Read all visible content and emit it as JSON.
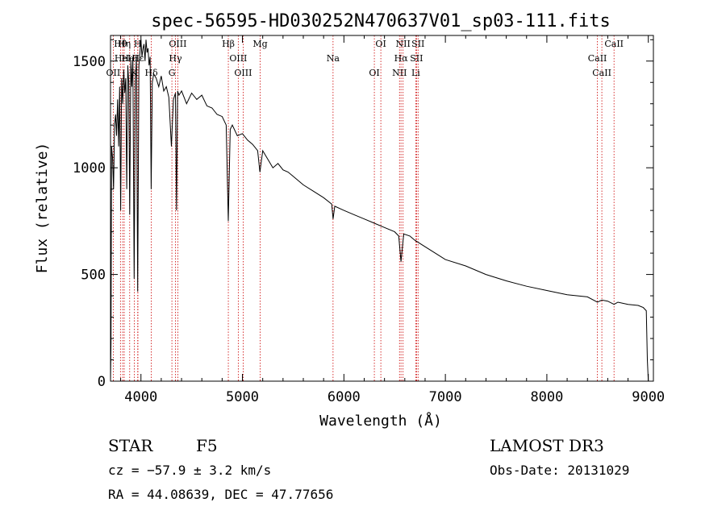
{
  "chart_data": {
    "type": "line",
    "title": "spec-56595-HD030252N470637V01_sp03-111.fits",
    "xlabel": "Wavelength (Å)",
    "ylabel": "Flux (relative)",
    "xlim": [
      3700,
      9050
    ],
    "ylim": [
      0,
      1620
    ],
    "xticks": [
      4000,
      5000,
      6000,
      7000,
      8000,
      9000
    ],
    "yticks": [
      0,
      500,
      1000,
      1500
    ],
    "series": [
      {
        "name": "Flux",
        "x": [
          3700,
          3705,
          3710,
          3720,
          3730,
          3740,
          3750,
          3760,
          3770,
          3780,
          3790,
          3800,
          3810,
          3820,
          3830,
          3840,
          3850,
          3860,
          3870,
          3880,
          3889,
          3900,
          3910,
          3920,
          3933,
          3945,
          3955,
          3968,
          3980,
          3990,
          4000,
          4010,
          4020,
          4030,
          4040,
          4050,
          4060,
          4070,
          4080,
          4090,
          4101,
          4112,
          4125,
          4150,
          4175,
          4200,
          4225,
          4250,
          4275,
          4300,
          4320,
          4340,
          4350,
          4361,
          4375,
          4400,
          4450,
          4500,
          4550,
          4600,
          4650,
          4700,
          4750,
          4800,
          4840,
          4861,
          4880,
          4900,
          4950,
          5000,
          5050,
          5100,
          5150,
          5172,
          5200,
          5250,
          5300,
          5350,
          5400,
          5450,
          5500,
          5600,
          5700,
          5800,
          5880,
          5893,
          5910,
          6000,
          6100,
          6200,
          6300,
          6400,
          6500,
          6540,
          6563,
          6590,
          6650,
          6700,
          6800,
          6900,
          7000,
          7200,
          7400,
          7600,
          7800,
          8000,
          8200,
          8400,
          8498,
          8542,
          8600,
          8662,
          8700,
          8800,
          8900,
          8950,
          8980,
          8990,
          9000
        ],
        "y": [
          0,
          180,
          1100,
          1050,
          900,
          1200,
          1250,
          1150,
          1320,
          1100,
          1380,
          800,
          1420,
          1300,
          1460,
          1350,
          1420,
          900,
          1480,
          1400,
          780,
          1500,
          1380,
          1520,
          480,
          1400,
          1520,
          420,
          1480,
          1540,
          1600,
          1520,
          1560,
          1580,
          1500,
          1600,
          1540,
          1560,
          1480,
          1520,
          900,
          1400,
          1440,
          1420,
          1380,
          1430,
          1360,
          1380,
          1330,
          1100,
          1320,
          1350,
          800,
          1360,
          1340,
          1360,
          1300,
          1350,
          1320,
          1340,
          1290,
          1280,
          1250,
          1240,
          1200,
          750,
          1180,
          1200,
          1150,
          1160,
          1130,
          1110,
          1080,
          980,
          1080,
          1040,
          1000,
          1020,
          990,
          980,
          960,
          920,
          890,
          860,
          830,
          760,
          820,
          800,
          780,
          760,
          740,
          720,
          700,
          680,
          560,
          690,
          680,
          660,
          630,
          600,
          570,
          540,
          500,
          470,
          445,
          425,
          405,
          395,
          370,
          380,
          375,
          360,
          370,
          360,
          355,
          345,
          330,
          100,
          0
        ]
      }
    ],
    "lines": [
      {
        "label": "Hθ",
        "wl": 3798
      },
      {
        "label": "HeI",
        "wl": 3820
      },
      {
        "label": "OII",
        "wl": 3727
      },
      {
        "label": "Hη",
        "wl": 3835
      },
      {
        "label": "HeI",
        "wl": 3889
      },
      {
        "label": "K",
        "wl": 3934
      },
      {
        "label": "H",
        "wl": 3968
      },
      {
        "label": "Hε",
        "wl": 3970
      },
      {
        "label": "Hδ",
        "wl": 4102
      },
      {
        "label": "OIII",
        "wl": 4363
      },
      {
        "label": "Hγ",
        "wl": 4340
      },
      {
        "label": "G",
        "wl": 4305
      },
      {
        "label": "Hβ",
        "wl": 4861
      },
      {
        "label": "OIII",
        "wl": 4959
      },
      {
        "label": "OIII",
        "wl": 5007
      },
      {
        "label": "Mg",
        "wl": 5175
      },
      {
        "label": "Na",
        "wl": 5893
      },
      {
        "label": "OI",
        "wl": 6300
      },
      {
        "label": "OI",
        "wl": 6364
      },
      {
        "label": "Hα",
        "wl": 6563
      },
      {
        "label": "NII",
        "wl": 6548
      },
      {
        "label": "NII",
        "wl": 6583
      },
      {
        "label": "SII",
        "wl": 6716
      },
      {
        "label": "Li",
        "wl": 6708
      },
      {
        "label": "SII",
        "wl": 6731
      },
      {
        "label": "CaII",
        "wl": 8498
      },
      {
        "label": "CaII",
        "wl": 8542
      },
      {
        "label": "CaII",
        "wl": 8662
      }
    ],
    "line_color": "#cc0000"
  },
  "info": {
    "object_class": "STAR",
    "subclass": "F5",
    "survey": "LAMOST DR3",
    "cz": "cz = −57.9 ± 3.2 km/s",
    "obs_date": "Obs-Date: 20131029",
    "coords": "RA =  44.08639, DEC =  47.77656"
  }
}
